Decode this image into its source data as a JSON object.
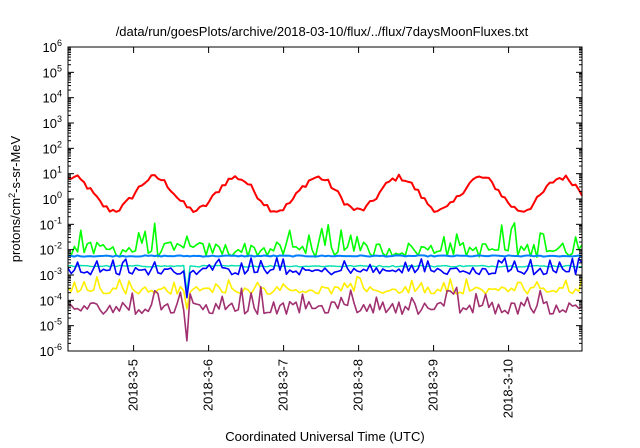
{
  "chart_data": {
    "type": "line",
    "title": "/data/run/goesPlots/archive/2018-03-10/flux/../flux/7daysMoonFluxes.txt",
    "xlabel": "Coordinated Universal Time (UTC)",
    "ylabel": {
      "prefix": "protons/cm",
      "sup": "2",
      "suffix": "-s-sr-MeV"
    },
    "y_scale": "log",
    "ylim": [
      1e-06,
      1000000.0
    ],
    "y_ticks": [
      {
        "base": "10",
        "exp": "-6",
        "value": 1e-06
      },
      {
        "base": "10",
        "exp": "-5",
        "value": 1e-05
      },
      {
        "base": "10",
        "exp": "-4",
        "value": 0.0001
      },
      {
        "base": "10",
        "exp": "-3",
        "value": 0.001
      },
      {
        "base": "10",
        "exp": "-2",
        "value": 0.01
      },
      {
        "base": "10",
        "exp": "-1",
        "value": 0.1
      },
      {
        "base": "10",
        "exp": "0",
        "value": 1
      },
      {
        "base": "10",
        "exp": "1",
        "value": 10
      },
      {
        "base": "10",
        "exp": "2",
        "value": 100
      },
      {
        "base": "10",
        "exp": "3",
        "value": 1000
      },
      {
        "base": "10",
        "exp": "4",
        "value": 10000
      },
      {
        "base": "10",
        "exp": "5",
        "value": 100000
      },
      {
        "base": "10",
        "exp": "6",
        "value": 1000000
      }
    ],
    "xlim": [
      "2018-03-04T03:00",
      "2018-03-10T23:30"
    ],
    "x_ticks": [
      {
        "label": "2018-3-5",
        "value": "2018-03-05"
      },
      {
        "label": "2018-3-6",
        "value": "2018-03-06"
      },
      {
        "label": "2018-3-7",
        "value": "2018-03-07"
      },
      {
        "label": "2018-3-8",
        "value": "2018-03-08"
      },
      {
        "label": "2018-3-9",
        "value": "2018-03-09"
      },
      {
        "label": "2018-3-10",
        "value": "2018-03-10"
      }
    ],
    "grid": false,
    "series": [
      {
        "color": "#ff0000",
        "width": 2.0,
        "base_log": 0.2,
        "pattern": "wave",
        "amp": 0.65
      },
      {
        "color": "#00ff00",
        "width": 1.6,
        "base_log": -2.0,
        "pattern": "spiky",
        "amp": 0.6
      },
      {
        "color": "#0080ff",
        "width": 2.0,
        "base_log": -2.25,
        "pattern": "flat",
        "amp": 0.05
      },
      {
        "color": "#00e0b0",
        "width": 1.4,
        "base_log": -2.65,
        "pattern": "flat",
        "amp": 0.06
      },
      {
        "color": "#0000ff",
        "width": 1.6,
        "base_log": -2.85,
        "pattern": "spiky",
        "amp": 0.3
      },
      {
        "color": "#ffee00",
        "width": 1.6,
        "base_log": -3.6,
        "pattern": "spiky",
        "amp": 0.3
      },
      {
        "color": "#a03070",
        "width": 1.6,
        "base_log": -4.3,
        "pattern": "spiky",
        "amp": 0.5
      }
    ]
  }
}
